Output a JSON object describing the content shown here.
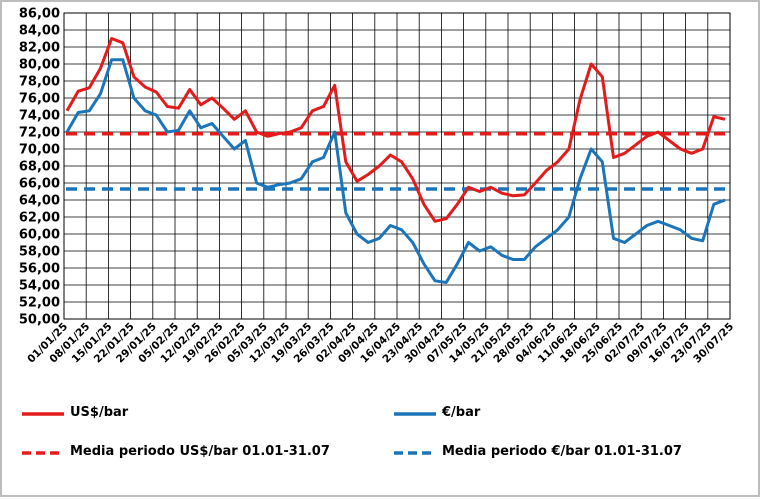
{
  "chart_data": {
    "type": "line",
    "ylim": [
      50,
      86
    ],
    "ytick_labels": [
      "50,00",
      "52,00",
      "54,00",
      "56,00",
      "58,00",
      "60,00",
      "62,00",
      "64,00",
      "66,00",
      "68,00",
      "70,00",
      "72,00",
      "74,00",
      "76,00",
      "78,00",
      "80,00",
      "82,00",
      "84,00",
      "86,00"
    ],
    "xtick_labels": [
      "01/01/25",
      "08/01/25",
      "15/01/25",
      "22/01/25",
      "29/01/25",
      "05/02/25",
      "12/02/25",
      "19/02/25",
      "26/02/25",
      "05/03/25",
      "12/03/25",
      "19/03/25",
      "26/03/25",
      "02/04/25",
      "09/04/25",
      "16/04/25",
      "23/04/25",
      "30/04/25",
      "07/05/25",
      "14/05/25",
      "21/05/25",
      "28/05/25",
      "04/06/25",
      "11/06/25",
      "18/06/25",
      "25/06/25",
      "02/07/25",
      "09/07/25",
      "16/07/25",
      "23/07/25",
      "30/07/25"
    ],
    "grid": true,
    "series": [
      {
        "name": "US$/bar",
        "color": "#e31b1b",
        "style": "solid",
        "values": [
          74.5,
          76.8,
          77.2,
          79.5,
          83.0,
          82.5,
          78.5,
          77.3,
          76.7,
          75.0,
          74.8,
          77.0,
          75.2,
          76.0,
          74.8,
          73.5,
          74.5,
          72.0,
          71.5,
          71.8,
          72.0,
          72.5,
          74.5,
          75.0,
          77.5,
          68.5,
          66.2,
          67.0,
          68.0,
          69.3,
          68.5,
          66.5,
          63.5,
          61.5,
          61.8,
          63.5,
          65.5,
          65.0,
          65.5,
          64.8,
          64.5,
          64.6,
          66.0,
          67.5,
          68.5,
          70.0,
          75.8,
          80.0,
          78.5,
          69.0,
          69.5,
          70.5,
          71.5,
          72.0,
          71.0,
          70.0,
          69.5,
          70.0,
          73.8,
          73.5
        ]
      },
      {
        "name": "€/bar",
        "color": "#1b75bb",
        "style": "solid",
        "values": [
          72.0,
          74.3,
          74.5,
          76.5,
          80.5,
          80.5,
          76.0,
          74.5,
          74.0,
          72.0,
          72.2,
          74.5,
          72.5,
          73.0,
          71.5,
          70.0,
          71.0,
          66.0,
          65.5,
          65.8,
          66.0,
          66.5,
          68.5,
          69.0,
          72.0,
          62.5,
          60.0,
          59.0,
          59.5,
          61.0,
          60.5,
          59.0,
          56.5,
          54.5,
          54.3,
          56.5,
          59.0,
          58.0,
          58.5,
          57.5,
          57.0,
          57.0,
          58.5,
          59.5,
          60.5,
          62.0,
          66.5,
          70.0,
          68.5,
          59.5,
          59.0,
          60.0,
          61.0,
          61.5,
          61.0,
          60.5,
          59.5,
          59.2,
          63.5,
          64.0
        ]
      },
      {
        "name": "Media periodo US$/bar 01.01-31.07",
        "color": "#e31b1b",
        "style": "dashed",
        "values": [
          71.8
        ]
      },
      {
        "name": "Media periodo €/bar 01.01-31.07",
        "color": "#1b75bb",
        "style": "dashed",
        "values": [
          65.3
        ]
      }
    ]
  },
  "legend": {
    "usd": "US$/bar",
    "eur": "€/bar",
    "usd_avg": "Media periodo US$/bar 01.01-31.07",
    "eur_avg": "Media periodo €/bar 01.01-31.07"
  }
}
